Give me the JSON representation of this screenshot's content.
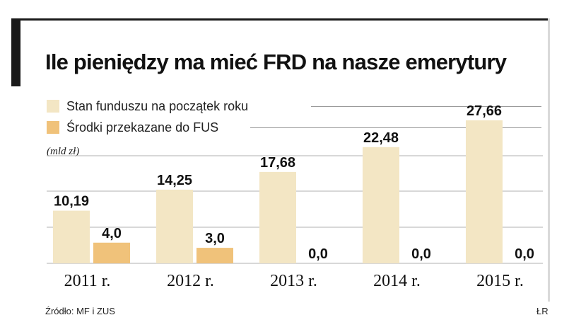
{
  "title": "Ile pieniędzy ma mieć FRD na nasze emerytury",
  "unit": "(mld zł)",
  "source": "Źródło: MF i ZUS",
  "author": "ŁR",
  "colors": {
    "series_a": "#f3e6c4",
    "series_b": "#f0c27a",
    "grid": "#b0b0b0",
    "text": "#111111"
  },
  "chart_data": {
    "type": "bar",
    "categories": [
      "2011 r.",
      "2012 r.",
      "2013 r.",
      "2014 r.",
      "2015 r."
    ],
    "series": [
      {
        "name": "Stan funduszu na początek roku",
        "values": [
          10.19,
          14.25,
          17.68,
          22.48,
          27.66
        ],
        "labels": [
          "10,19",
          "14,25",
          "17,68",
          "22,48",
          "27,66"
        ]
      },
      {
        "name": "Środki przekazane do FUS",
        "values": [
          4.0,
          3.0,
          0.0,
          0.0,
          0.0
        ],
        "labels": [
          "4,0",
          "3,0",
          "0,0",
          "0,0",
          "0,0"
        ]
      }
    ],
    "ylabel": "(mld zł)",
    "ylim": [
      0,
      27.66
    ],
    "grid": true,
    "legend": "top-left"
  }
}
